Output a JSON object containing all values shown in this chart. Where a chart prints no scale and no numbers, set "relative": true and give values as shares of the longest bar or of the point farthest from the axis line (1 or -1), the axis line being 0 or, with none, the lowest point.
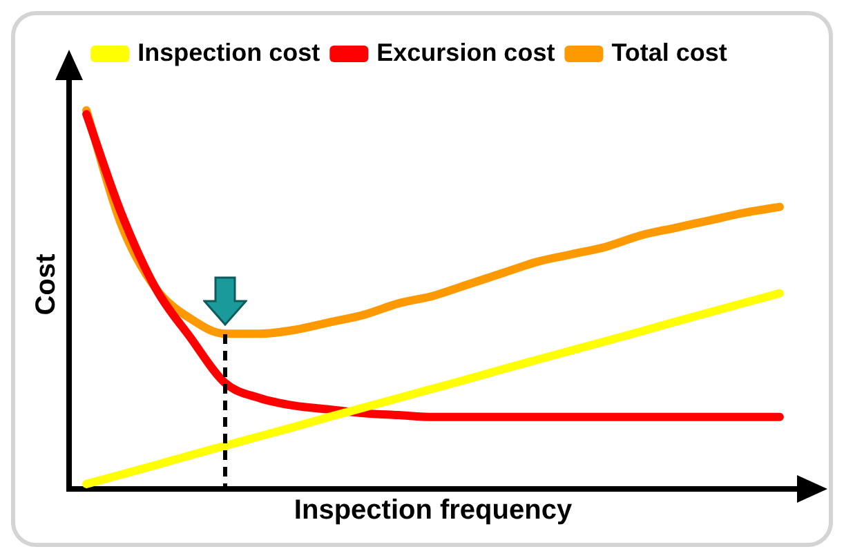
{
  "chart_data": {
    "type": "line",
    "relative": true,
    "xlabel": "Inspection frequency",
    "ylabel": "Cost",
    "categories": [
      null,
      null,
      null,
      null,
      null,
      null,
      null,
      null,
      null,
      null,
      null,
      null,
      null,
      null,
      null,
      null,
      null,
      null,
      null,
      null,
      null
    ],
    "series": [
      {
        "name": "Inspection cost",
        "color": "#ffff00",
        "values": [
          0.013,
          0.038,
          0.063,
          0.089,
          0.114,
          0.139,
          0.164,
          0.19,
          0.215,
          0.24,
          0.265,
          0.29,
          0.316,
          0.341,
          0.366,
          0.391,
          0.416,
          0.442,
          0.467,
          0.492,
          0.517
        ]
      },
      {
        "name": "Excursion cost",
        "color": "#ff0000",
        "values": [
          0.99,
          0.73,
          0.53,
          0.4,
          0.28,
          0.24,
          0.22,
          0.21,
          0.2,
          0.195,
          0.19,
          0.19,
          0.19,
          0.19,
          0.19,
          0.19,
          0.19,
          0.19,
          0.19,
          0.19,
          0.19
        ]
      },
      {
        "name": "Total cost",
        "color": "#ff9900",
        "values": [
          1.0,
          0.7,
          0.53,
          0.45,
          0.41,
          0.41,
          0.42,
          0.44,
          0.46,
          0.49,
          0.51,
          0.54,
          0.57,
          0.6,
          0.62,
          0.64,
          0.67,
          0.69,
          0.71,
          0.73,
          0.745
        ]
      }
    ],
    "legend": "top",
    "grid": false,
    "marker": "none",
    "line_style": "solid"
  }
}
